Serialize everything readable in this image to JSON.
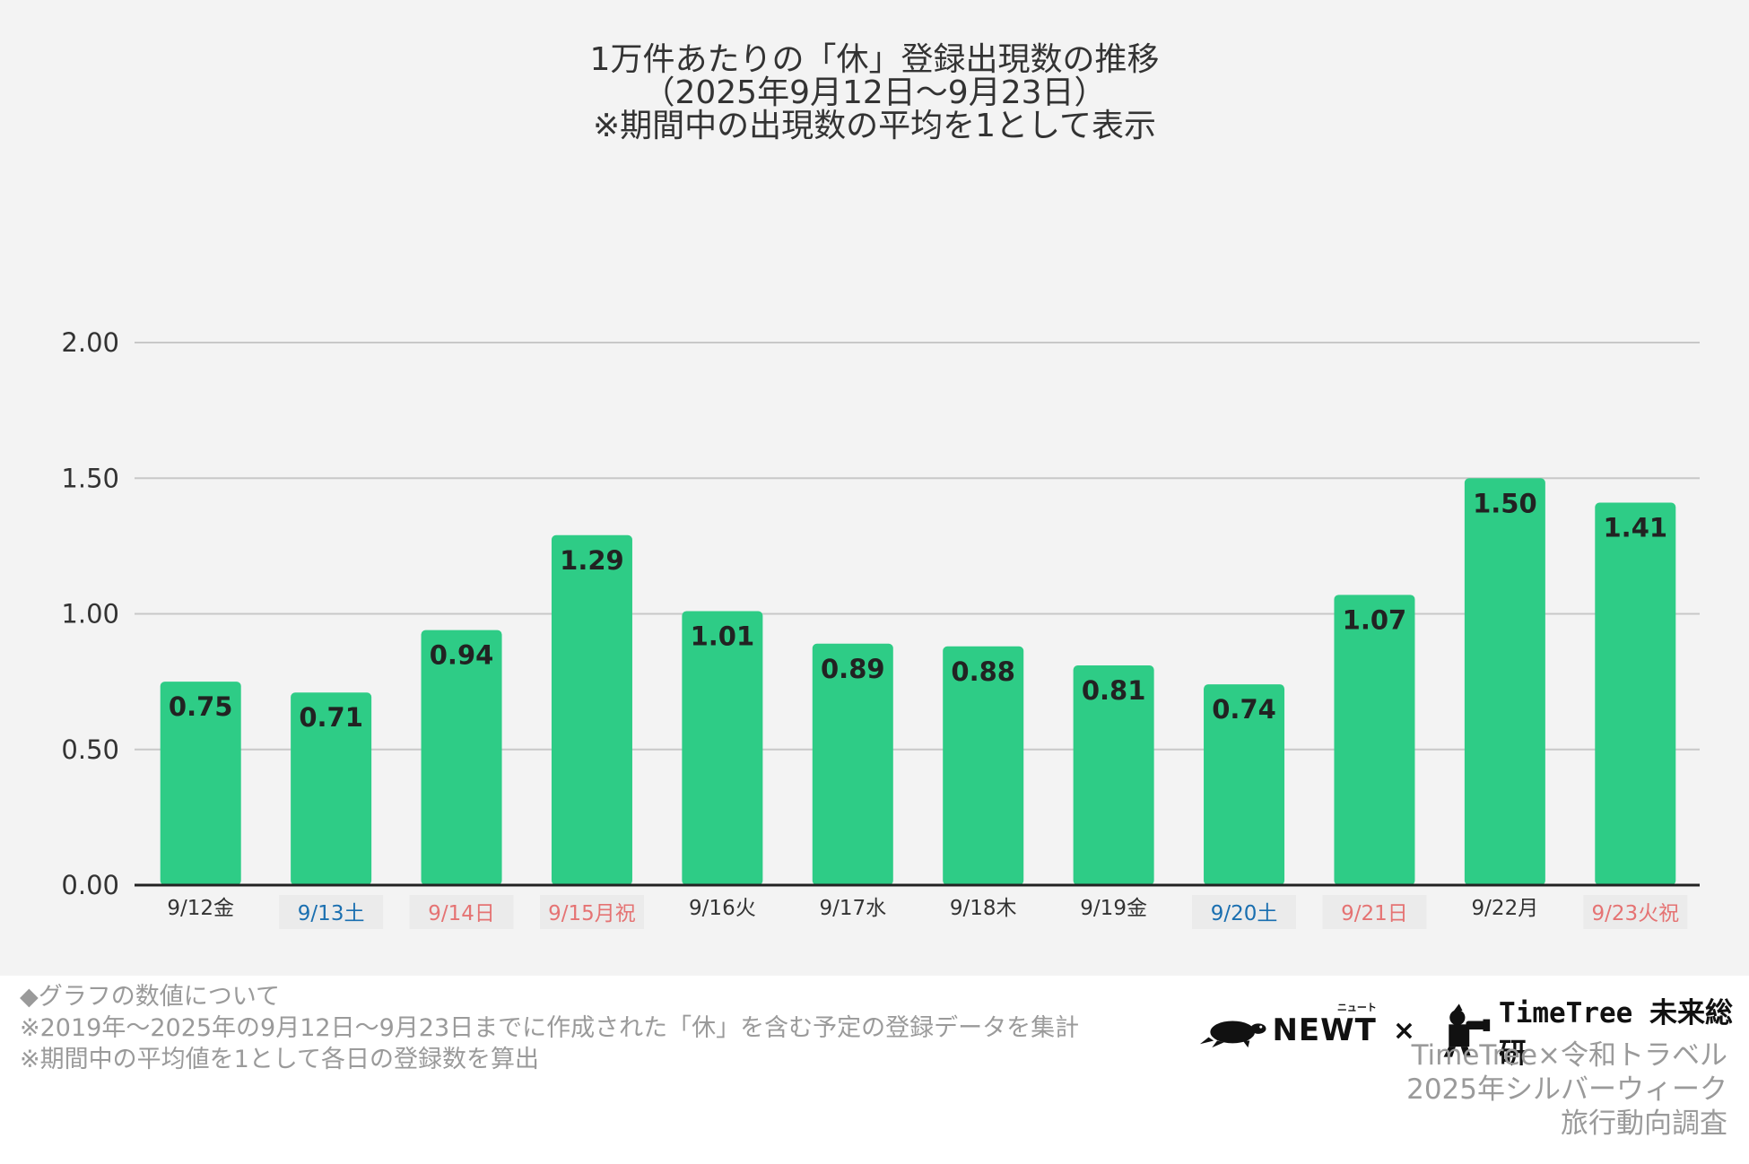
{
  "colors": {
    "bar": "#2ecc86",
    "grid": "#c8c8c8",
    "axis": "#222222",
    "weekday": "#333333",
    "saturday": "#1a6fb0",
    "holiday": "#e57373",
    "muted": "#9a9a9a"
  },
  "chart_data": {
    "type": "bar",
    "title_lines": [
      "1万件あたりの「休」登録出現数の推移",
      "（2025年9月12日〜9月23日）",
      "※期間中の出現数の平均を1として表示"
    ],
    "xlabel": "",
    "ylabel": "",
    "ylim": [
      0,
      2
    ],
    "yticks": [
      "0.00",
      "0.50",
      "1.00",
      "1.50",
      "2.00"
    ],
    "ytick_values": [
      0,
      0.5,
      1,
      1.5,
      2
    ],
    "grid": true,
    "legend": "none",
    "categories": [
      "9/12金",
      "9/13土",
      "9/14日",
      "9/15月祝",
      "9/16火",
      "9/17水",
      "9/18木",
      "9/19金",
      "9/20土",
      "9/21日",
      "9/22月",
      "9/23火祝"
    ],
    "category_types": [
      "weekday",
      "saturday",
      "holiday",
      "holiday",
      "weekday",
      "weekday",
      "weekday",
      "weekday",
      "saturday",
      "holiday",
      "weekday",
      "holiday"
    ],
    "values": [
      0.75,
      0.71,
      0.94,
      1.29,
      1.01,
      0.89,
      0.88,
      0.81,
      0.74,
      1.07,
      1.5,
      1.41
    ],
    "value_labels": [
      "0.75",
      "0.71",
      "0.94",
      "1.29",
      "1.01",
      "0.89",
      "0.88",
      "0.81",
      "0.74",
      "1.07",
      "1.50",
      "1.41"
    ]
  },
  "footnote": {
    "heading": "◆グラフの数値について",
    "line1": "※2019年〜2025年の9月12日〜9月23日までに作成された「休」を含む予定の登録データを集計",
    "line2": "※期間中の平均値を1として各日の登録数を算出"
  },
  "logos": {
    "newt_small": "ニュート",
    "newt": "NEWT",
    "cross": "×",
    "timetree": "TimeTree 未来総研",
    "turtle_icon": "turtle-icon",
    "tree_icon": "tree-person-icon"
  },
  "credit": {
    "line1": "TimeTree×令和トラベル",
    "line2": "2025年シルバーウィーク",
    "line3": "旅行動向調査"
  }
}
